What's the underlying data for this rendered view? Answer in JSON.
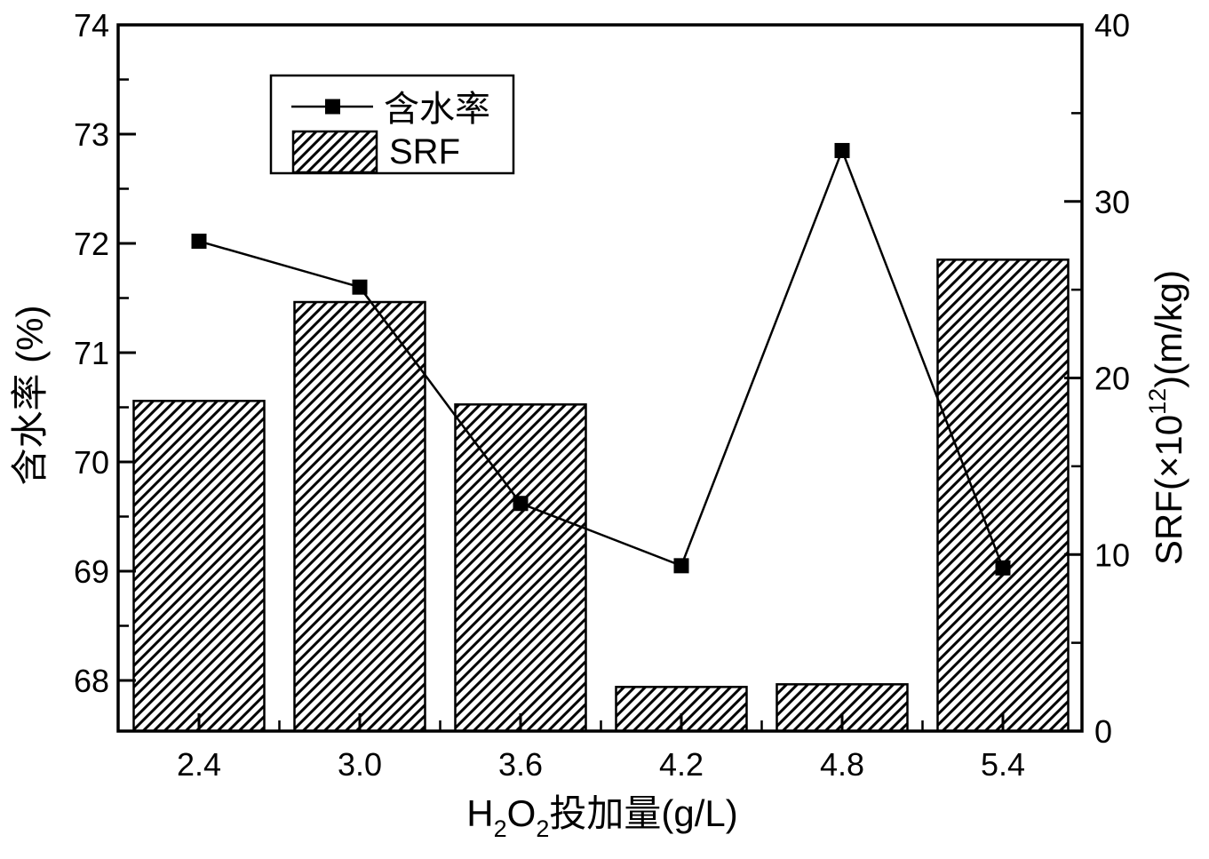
{
  "colors": {
    "foreground": "#000000",
    "background": "#ffffff"
  },
  "chart_data": {
    "type": "bar+line (dual y-axis)",
    "categories": [
      "2.4",
      "3.0",
      "3.6",
      "4.2",
      "4.8",
      "5.4"
    ],
    "series": [
      {
        "name": "含水率",
        "type": "line",
        "axis": "left",
        "marker": "filled-square",
        "color": "#000000",
        "values": [
          72.02,
          71.6,
          69.62,
          69.05,
          72.85,
          69.03
        ]
      },
      {
        "name": "SRF",
        "type": "bar",
        "axis": "right",
        "fill": "diagonal-hatch",
        "color": "#000000",
        "values": [
          18.7,
          24.3,
          18.5,
          2.5,
          2.65,
          26.7
        ]
      }
    ],
    "xlabel": {
      "plain": "H2O2投加量(g/L)",
      "parts": [
        {
          "t": "H"
        },
        {
          "t": "2",
          "shift": "sub"
        },
        {
          "t": "O"
        },
        {
          "t": "2",
          "shift": "sub"
        },
        {
          "t": "投加量(g/L)"
        }
      ]
    },
    "axes": {
      "left": {
        "label": "含水率 (%)",
        "tick_labels": [
          "68",
          "69",
          "70",
          "71",
          "72",
          "73",
          "74"
        ],
        "tick_values": [
          68,
          69,
          70,
          71,
          72,
          73,
          74
        ],
        "minor_tick_values": [
          68.5,
          69.5,
          70.5,
          71.5,
          72.5,
          73.5
        ],
        "value_at_top": 74,
        "units_per_major": 1
      },
      "right": {
        "label": {
          "plain": "SRF(×10^12)(m/kg)",
          "parts": [
            {
              "t": "SRF(×10"
            },
            {
              "t": "12",
              "shift": "sup"
            },
            {
              "t": ")(m/kg)"
            }
          ]
        },
        "tick_labels": [
          "0",
          "10",
          "20",
          "30",
          "40"
        ],
        "tick_values": [
          0,
          10,
          20,
          30,
          40
        ],
        "minor_tick_values": [
          5,
          15,
          25,
          35
        ],
        "range": [
          0,
          40
        ]
      },
      "x": {
        "tick_labels": [
          "2.4",
          "3.0",
          "3.6",
          "4.2",
          "4.8",
          "5.4"
        ],
        "has_midpoint_minor_ticks": true
      }
    },
    "legend": {
      "position": "inside-top-left",
      "entries": [
        {
          "label": "含水率",
          "swatch": "line-with-square-marker"
        },
        {
          "label": "SRF",
          "swatch": "hatched-box"
        }
      ]
    },
    "grid": "off",
    "title": ""
  }
}
